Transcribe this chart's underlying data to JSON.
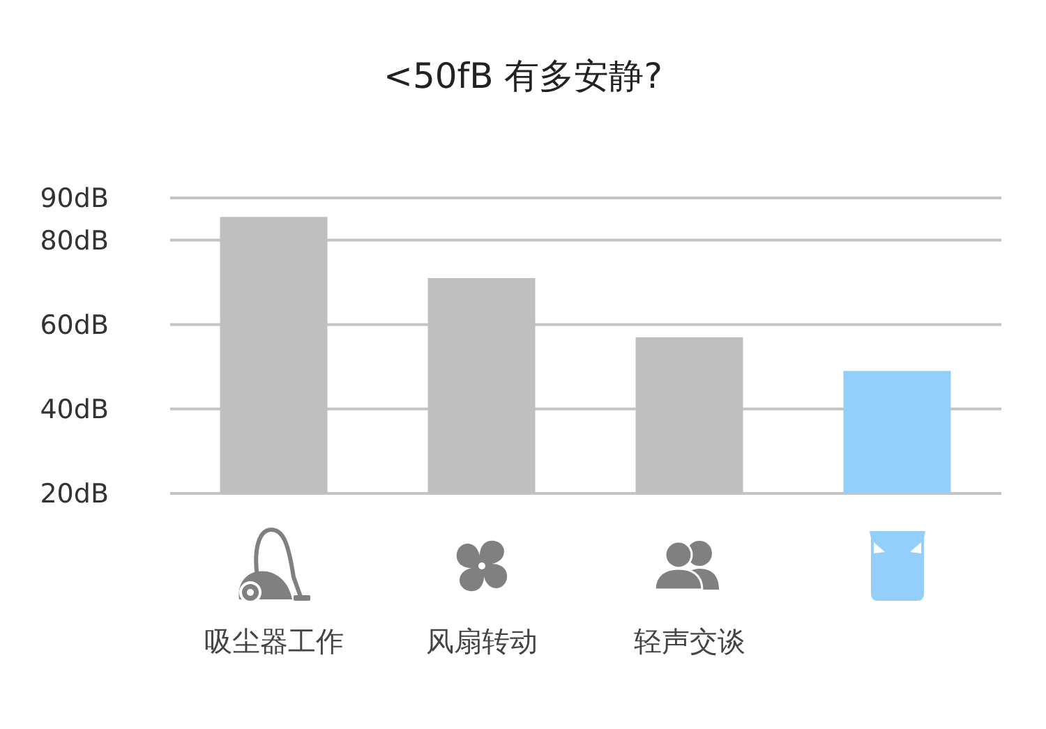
{
  "chart_data": {
    "type": "bar",
    "title": "<50fB 有多安静?",
    "categories": [
      "吸尘器工作",
      "风扇转动",
      "轻声交谈",
      null
    ],
    "values": [
      85.5,
      71,
      57,
      49
    ],
    "colors": [
      "#bfbfbf",
      "#bfbfbf",
      "#bfbfbf",
      "#94cefa"
    ],
    "ylim": [
      20,
      90
    ],
    "yticks": [
      {
        "value": 20,
        "label": "20dB"
      },
      {
        "value": 40,
        "label": "40dB"
      },
      {
        "value": 60,
        "label": "60dB"
      },
      {
        "value": 80,
        "label": "80dB"
      },
      {
        "value": 90,
        "label": "90dB"
      }
    ],
    "grid": "y"
  }
}
